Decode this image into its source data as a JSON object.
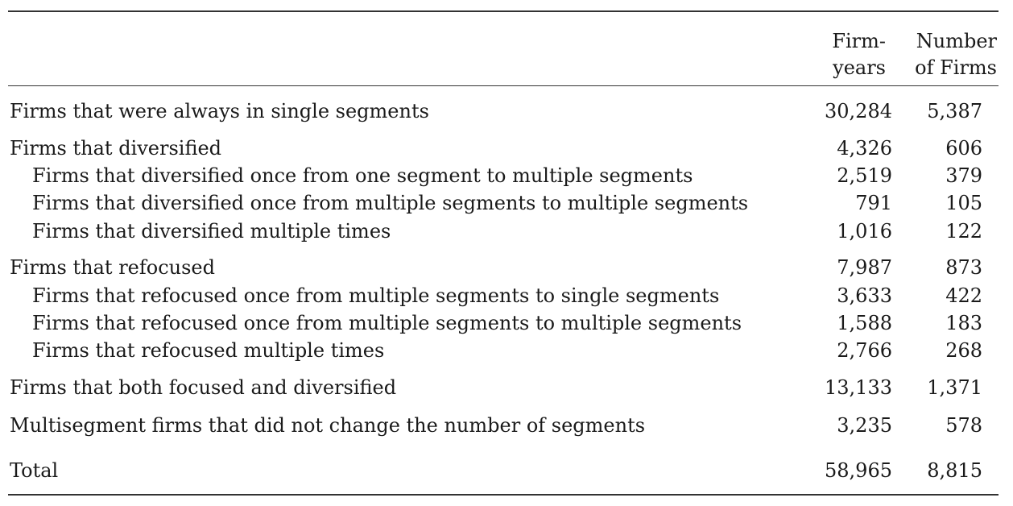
{
  "header": {
    "firm_years_line1": "Firm-",
    "firm_years_line2": "years",
    "number_firms_line1": "Number",
    "number_firms_line2": "of Firms"
  },
  "rows": [
    {
      "label": "Firms that were always in single segments",
      "firm_years": "30,284",
      "number_of_firms": "5,387",
      "indent": false
    },
    {
      "label": "Firms that diversified",
      "firm_years": "4,326",
      "number_of_firms": "606",
      "indent": false
    },
    {
      "label": "Firms that diversified once from one segment to multiple segments",
      "firm_years": "2,519",
      "number_of_firms": "379",
      "indent": true
    },
    {
      "label": "Firms that diversified once from multiple segments to multiple segments",
      "firm_years": "791",
      "number_of_firms": "105",
      "indent": true
    },
    {
      "label": "Firms that diversified multiple times",
      "firm_years": "1,016",
      "number_of_firms": "122",
      "indent": true
    },
    {
      "label": "Firms that refocused",
      "firm_years": "7,987",
      "number_of_firms": "873",
      "indent": false
    },
    {
      "label": "Firms that refocused once from multiple segments to single segments",
      "firm_years": "3,633",
      "number_of_firms": "422",
      "indent": true
    },
    {
      "label": "Firms that refocused once from multiple segments to multiple segments",
      "firm_years": "1,588",
      "number_of_firms": "183",
      "indent": true
    },
    {
      "label": "Firms that refocused multiple times",
      "firm_years": "2,766",
      "number_of_firms": "268",
      "indent": true
    },
    {
      "label": "Firms that both focused and diversified",
      "firm_years": "13,133",
      "number_of_firms": "1,371",
      "indent": false
    },
    {
      "label": "Multisegment firms that did not change the number of segments",
      "firm_years": "3,235",
      "number_of_firms": "578",
      "indent": false
    },
    {
      "label": "Total",
      "firm_years": "58,965",
      "number_of_firms": "8,815",
      "indent": false
    }
  ]
}
